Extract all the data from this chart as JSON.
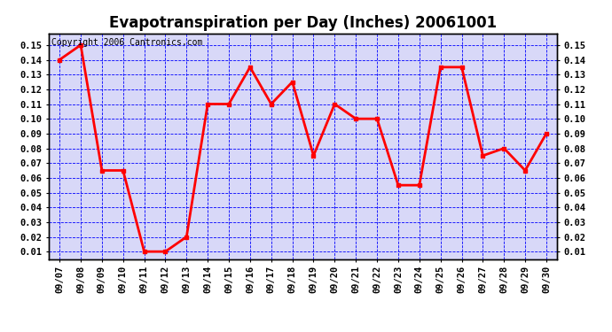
{
  "title": "Evapotranspiration per Day (Inches) 20061001",
  "copyright_text": "Copyright 2006 Cantronics.com",
  "dates": [
    "09/07",
    "09/08",
    "09/09",
    "09/10",
    "09/11",
    "09/12",
    "09/13",
    "09/14",
    "09/15",
    "09/16",
    "09/17",
    "09/18",
    "09/19",
    "09/20",
    "09/21",
    "09/22",
    "09/23",
    "09/24",
    "09/25",
    "09/26",
    "09/27",
    "09/28",
    "09/29",
    "09/30"
  ],
  "values": [
    0.14,
    0.15,
    0.065,
    0.065,
    0.01,
    0.01,
    0.02,
    0.11,
    0.11,
    0.135,
    0.11,
    0.125,
    0.075,
    0.11,
    0.1,
    0.1,
    0.055,
    0.055,
    0.135,
    0.135,
    0.075,
    0.08,
    0.065,
    0.09
  ],
  "line_color": "red",
  "marker_color": "red",
  "marker_style": "s",
  "marker_size": 3,
  "line_width": 2,
  "ylim": [
    0.005,
    0.158
  ],
  "yticks": [
    0.01,
    0.02,
    0.03,
    0.04,
    0.05,
    0.06,
    0.07,
    0.08,
    0.09,
    0.1,
    0.11,
    0.12,
    0.13,
    0.14,
    0.15
  ],
  "grid_color": "blue",
  "grid_style": "--",
  "grid_alpha": 1.0,
  "grid_linewidth": 0.6,
  "bg_color": "white",
  "plot_bg_color": "#d8d8f8",
  "border_color": "black",
  "title_fontsize": 12,
  "tick_fontsize": 7.5,
  "copyright_fontsize": 7
}
